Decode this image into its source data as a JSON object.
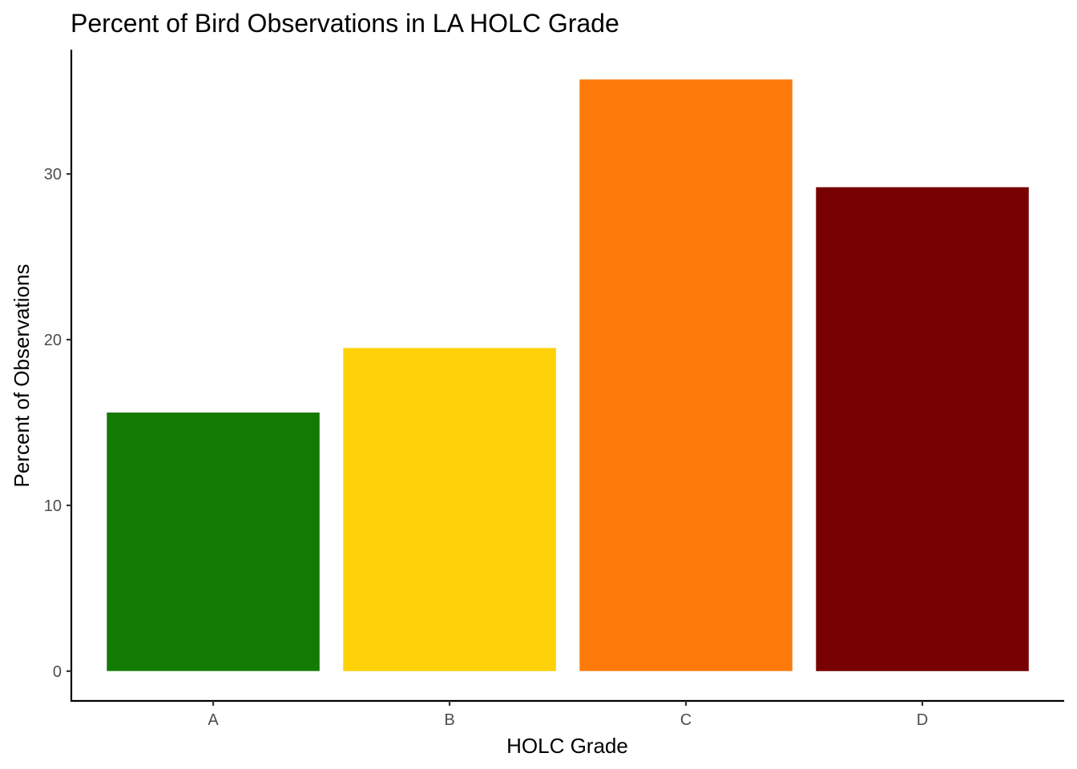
{
  "chart_data": {
    "type": "bar",
    "title": "Percent of Bird Observations in LA HOLC Grade",
    "xlabel": "HOLC Grade",
    "ylabel": "Percent of Observations",
    "categories": [
      "A",
      "B",
      "C",
      "D"
    ],
    "values": [
      15.6,
      19.5,
      35.7,
      29.2
    ],
    "colors": [
      "#137b04",
      "#fed109",
      "#fd7a0b",
      "#770000"
    ],
    "ylim": [
      -1.8,
      37.5
    ],
    "yticks": [
      0,
      10,
      20,
      30
    ],
    "grid": false,
    "legend": "none"
  }
}
